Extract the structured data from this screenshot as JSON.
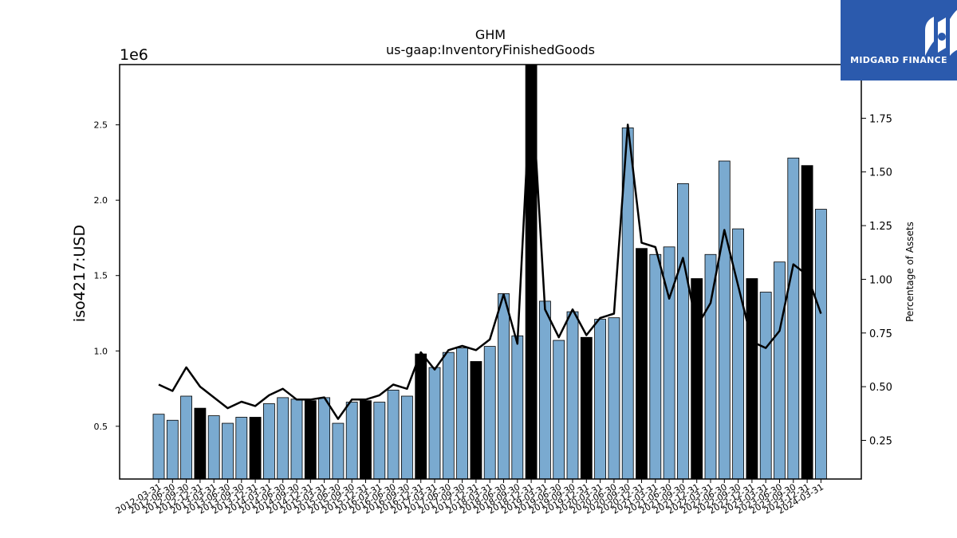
{
  "chart_data": {
    "type": "bar",
    "title": "GHM",
    "subtitle": "us-gaap:InventoryFinishedGoods",
    "ylabel": "iso4217:USD",
    "y_multiplier": "1e6",
    "y2label": "Percentage of Assets",
    "ylim": [
      0.15,
      2.9
    ],
    "y2lim": [
      0.07,
      2.0
    ],
    "yticks": [
      "0.5",
      "1.0",
      "1.5",
      "2.0",
      "2.5"
    ],
    "y2ticks": [
      "0.25",
      "0.50",
      "0.75",
      "1.00",
      "1.25",
      "1.50",
      "1.75"
    ],
    "categories": [
      "2012-03-31",
      "2012-06-30",
      "2012-09-30",
      "2012-12-31",
      "2013-03-31",
      "2013-06-30",
      "2013-09-30",
      "2013-12-31",
      "2014-03-31",
      "2014-06-30",
      "2014-09-30",
      "2014-12-31",
      "2015-03-31",
      "2015-06-30",
      "2015-09-30",
      "2015-12-31",
      "2016-03-31",
      "2016-06-30",
      "2016-09-30",
      "2016-12-31",
      "2017-03-31",
      "2017-06-30",
      "2017-09-30",
      "2017-12-31",
      "2018-03-31",
      "2018-06-30",
      "2018-09-30",
      "2018-12-31",
      "2019-03-31",
      "2019-06-30",
      "2019-09-30",
      "2019-12-31",
      "2020-03-31",
      "2020-06-30",
      "2020-09-30",
      "2020-12-31",
      "2021-03-31",
      "2021-06-30",
      "2021-09-30",
      "2021-12-31",
      "2022-03-31",
      "2022-06-30",
      "2022-09-30",
      "2022-12-31",
      "2023-03-31",
      "2023-06-30",
      "2023-09-30",
      "2023-12-31",
      "2024-03-31"
    ],
    "series": [
      {
        "type": "bar",
        "values": [
          0.58,
          0.54,
          0.7,
          0.62,
          0.57,
          0.52,
          0.56,
          0.56,
          0.65,
          0.69,
          0.68,
          0.67,
          0.69,
          0.52,
          0.66,
          0.67,
          0.66,
          0.74,
          0.7,
          0.98,
          0.89,
          0.99,
          1.02,
          0.93,
          1.03,
          1.38,
          1.1,
          2.9,
          1.33,
          1.07,
          1.26,
          1.09,
          1.21,
          1.22,
          2.48,
          1.68,
          1.64,
          1.69,
          2.11,
          1.48,
          1.64,
          2.26,
          1.81,
          1.48,
          1.39,
          1.59,
          2.28,
          2.23,
          1.94
        ],
        "year_end": [
          false,
          false,
          false,
          true,
          false,
          false,
          false,
          true,
          false,
          false,
          false,
          true,
          false,
          false,
          false,
          true,
          false,
          false,
          false,
          true,
          false,
          false,
          false,
          true,
          false,
          false,
          false,
          true,
          false,
          false,
          false,
          true,
          false,
          false,
          false,
          true,
          false,
          false,
          false,
          true,
          false,
          false,
          false,
          true,
          false,
          false,
          false,
          true,
          false
        ]
      },
      {
        "type": "line",
        "axis": "right",
        "values": [
          0.51,
          0.48,
          0.59,
          0.5,
          0.45,
          0.4,
          0.43,
          0.41,
          0.46,
          0.49,
          0.44,
          0.44,
          0.45,
          0.35,
          0.44,
          0.44,
          0.46,
          0.51,
          0.49,
          0.66,
          0.58,
          0.67,
          0.69,
          0.67,
          0.72,
          0.93,
          0.7,
          1.95,
          0.86,
          0.73,
          0.86,
          0.74,
          0.82,
          0.84,
          1.72,
          1.17,
          1.15,
          0.91,
          1.1,
          0.78,
          0.89,
          1.23,
          0.97,
          0.71,
          0.68,
          0.76,
          1.07,
          1.02,
          0.84
        ]
      }
    ],
    "colors": {
      "bar": "#7aaad0",
      "bar_year_end": "#000000",
      "edge": "#000000",
      "line": "#000000"
    },
    "grid": false,
    "legend": "none"
  },
  "logo": {
    "text": "MIDGARD FINANCE",
    "background": "#2b5aad"
  }
}
